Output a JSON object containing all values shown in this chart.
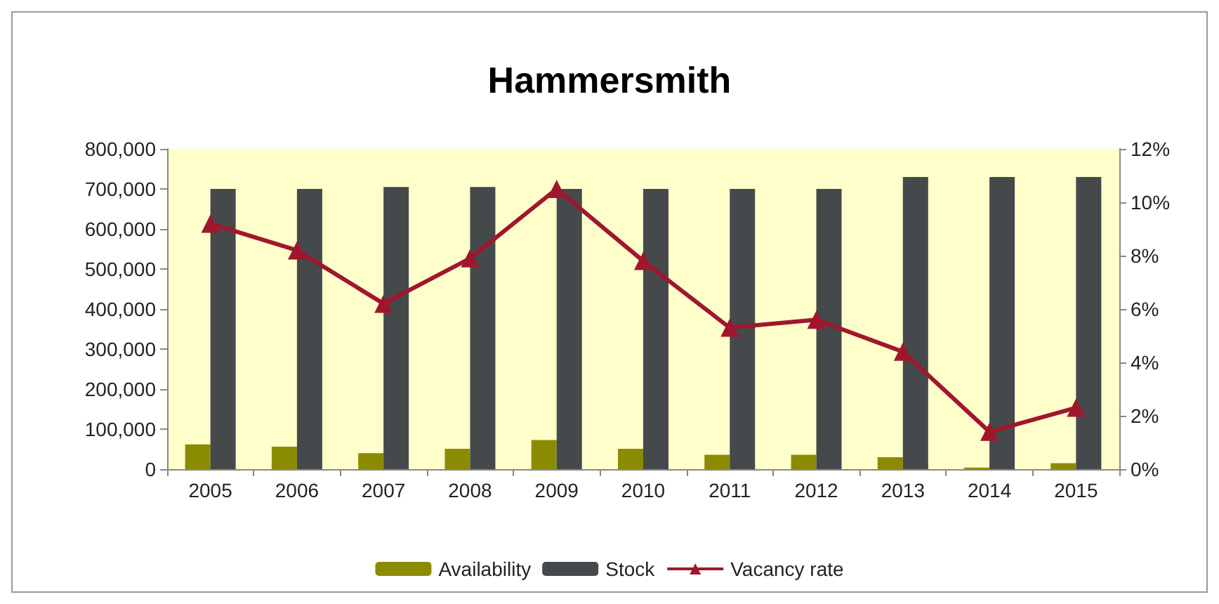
{
  "chart_data": {
    "type": "bar",
    "title": "Hammersmith",
    "categories": [
      "2005",
      "2006",
      "2007",
      "2008",
      "2009",
      "2010",
      "2011",
      "2012",
      "2013",
      "2014",
      "2015"
    ],
    "series": [
      {
        "name": "Availability",
        "color": "#8b8b00",
        "values": [
          62000,
          56000,
          40000,
          51000,
          73000,
          51000,
          36000,
          36000,
          30000,
          4000,
          15000
        ]
      },
      {
        "name": "Stock",
        "color": "#45494c",
        "values": [
          700000,
          700000,
          705000,
          705000,
          700000,
          700000,
          700000,
          700000,
          730000,
          730000,
          730000
        ]
      },
      {
        "name": "Vacancy rate",
        "type": "line",
        "axis": "y2",
        "color": "#a0172d",
        "marker": "triangle",
        "values": [
          9.2,
          8.2,
          6.2,
          7.9,
          10.5,
          7.8,
          5.3,
          5.6,
          4.4,
          1.4,
          2.3
        ]
      }
    ],
    "ylim": [
      0,
      800000
    ],
    "yticks": [
      {
        "value": 0,
        "label": "0"
      },
      {
        "value": 100000,
        "label": "100,000"
      },
      {
        "value": 200000,
        "label": "200,000"
      },
      {
        "value": 300000,
        "label": "300,000"
      },
      {
        "value": 400000,
        "label": "400,000"
      },
      {
        "value": 500000,
        "label": "500,000"
      },
      {
        "value": 600000,
        "label": "600,000"
      },
      {
        "value": 700000,
        "label": "700,000"
      },
      {
        "value": 800000,
        "label": "800,000"
      }
    ],
    "y2lim": [
      0,
      12
    ],
    "y2ticks": [
      {
        "value": 0,
        "label": "0%"
      },
      {
        "value": 2,
        "label": "2%"
      },
      {
        "value": 4,
        "label": "4%"
      },
      {
        "value": 6,
        "label": "6%"
      },
      {
        "value": 8,
        "label": "8%"
      },
      {
        "value": 10,
        "label": "10%"
      },
      {
        "value": 12,
        "label": "12%"
      }
    ],
    "grid": false,
    "legend": "bottom"
  }
}
